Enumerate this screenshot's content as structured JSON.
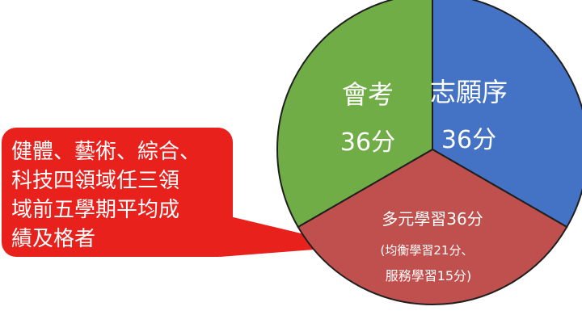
{
  "chart_data": {
    "type": "pie",
    "slices": [
      {
        "label": "志願序",
        "value_label": "36分",
        "value": 36,
        "color": "#4472C4"
      },
      {
        "label": "多元學習36分",
        "sub_lines": [
          "(均衡學習21分、",
          "服務學習15分)"
        ],
        "value": 36,
        "color": "#C0504D"
      },
      {
        "label": "會考",
        "value_label": "36分",
        "value": 36,
        "color": "#70AD47"
      }
    ]
  },
  "callout": {
    "lines": [
      "健體、藝術、綜合、",
      "科技四領域任三領",
      "域前五學期平均成",
      "績及格者"
    ],
    "color": "#E8211C"
  }
}
